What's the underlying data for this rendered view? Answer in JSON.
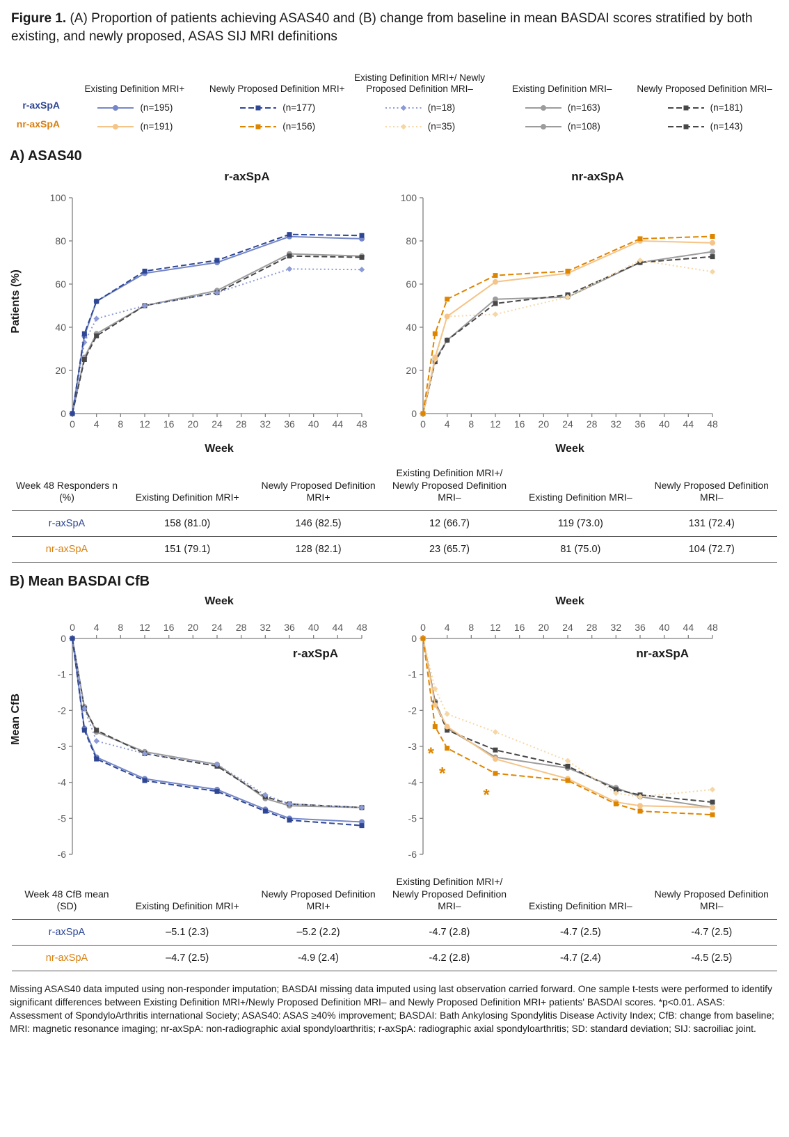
{
  "title": {
    "bold": "Figure 1.",
    "rest": " (A) Proportion of patients achieving ASAS40 and (B) change from baseline in mean BASDAI scores stratified by both existing, and newly proposed, ASAS SIJ MRI definitions"
  },
  "accent_colors": {
    "r_axspa": "#2e4693",
    "nr_axspa": "#d97f0e",
    "axis": "#808080",
    "tick_text": "#595959"
  },
  "styles": {
    "r_existing_plus": {
      "color": "#7587c8",
      "dash": "",
      "marker": "circle"
    },
    "r_new_plus": {
      "color": "#2e4693",
      "dash": "8 4",
      "marker": "square"
    },
    "r_mixed": {
      "color": "#8c9ad6",
      "dash": "2 3.5",
      "marker": "diamond"
    },
    "gray_existing_minus": {
      "color": "#9c9c9c",
      "dash": "",
      "marker": "circle"
    },
    "dark_new_minus": {
      "color": "#474747",
      "dash": "8 4",
      "marker": "square"
    },
    "nr_existing_plus": {
      "color": "#f5c488",
      "dash": "",
      "marker": "circle"
    },
    "nr_new_plus": {
      "color": "#de8500",
      "dash": "8 4",
      "marker": "square"
    },
    "nr_mixed": {
      "color": "#f6d7a4",
      "dash": "2 3.5",
      "marker": "diamond"
    }
  },
  "legend": {
    "row_labels": {
      "r": "r-axSpA",
      "nr": "nr-axSpA"
    },
    "groups": [
      {
        "header": "Existing Definition MRI+",
        "r": {
          "style": "r_existing_plus",
          "n": "(n=195)"
        },
        "nr": {
          "style": "nr_existing_plus",
          "n": "(n=191)"
        }
      },
      {
        "header": "Newly Proposed Definition MRI+",
        "r": {
          "style": "r_new_plus",
          "n": "(n=177)"
        },
        "nr": {
          "style": "nr_new_plus",
          "n": "(n=156)"
        }
      },
      {
        "header": "Existing Definition MRI+/ Newly Proposed Definition MRI–",
        "r": {
          "style": "r_mixed",
          "n": "(n=18)"
        },
        "nr": {
          "style": "nr_mixed",
          "n": "(n=35)"
        }
      },
      {
        "header": "Existing Definition MRI–",
        "r": {
          "style": "gray_existing_minus",
          "n": "(n=163)"
        },
        "nr": {
          "style": "gray_existing_minus",
          "n": "(n=108)"
        }
      },
      {
        "header": "Newly Proposed Definition MRI–",
        "r": {
          "style": "dark_new_minus",
          "n": "(n=181)"
        },
        "nr": {
          "style": "dark_new_minus",
          "n": "(n=143)"
        }
      }
    ]
  },
  "panel_a_heading": "A) ASAS40",
  "panel_b_heading": "B) Mean BASDAI CfB",
  "chart_data": [
    {
      "type": "line",
      "title": "r-axSpA",
      "xlabel": "Week",
      "ylabel": "Patients (%)",
      "xlim": [
        0,
        48
      ],
      "xticks": [
        0,
        4,
        8,
        12,
        16,
        20,
        24,
        28,
        32,
        36,
        40,
        44,
        48
      ],
      "ylim": [
        0,
        100
      ],
      "yticks": [
        0,
        20,
        40,
        60,
        80,
        100
      ],
      "x_axis": "bottom",
      "x": [
        0,
        2,
        4,
        12,
        24,
        36,
        48
      ],
      "series": [
        {
          "name": "Existing Definition MRI–",
          "style": "gray_existing_minus",
          "values": [
            0,
            26,
            37,
            50,
            57,
            74,
            73
          ]
        },
        {
          "name": "Newly Proposed Definition MRI–",
          "style": "dark_new_minus",
          "values": [
            0,
            25,
            36,
            50,
            56,
            73,
            72.4
          ]
        },
        {
          "name": "Existing Definition MRI+/Newly Proposed Definition MRI–",
          "style": "r_mixed",
          "values": [
            0,
            33,
            44,
            50,
            56,
            67,
            66.7
          ]
        },
        {
          "name": "Existing Definition MRI+",
          "style": "r_existing_plus",
          "values": [
            0,
            36,
            52,
            65,
            70,
            82,
            81
          ]
        },
        {
          "name": "Newly Proposed Definition MRI+",
          "style": "r_new_plus",
          "values": [
            0,
            37,
            52,
            66,
            71,
            83,
            82.5
          ]
        }
      ]
    },
    {
      "type": "line",
      "title": "nr-axSpA",
      "xlabel": "Week",
      "ylabel": "",
      "xlim": [
        0,
        48
      ],
      "xticks": [
        0,
        4,
        8,
        12,
        16,
        20,
        24,
        28,
        32,
        36,
        40,
        44,
        48
      ],
      "ylim": [
        0,
        100
      ],
      "yticks": [
        0,
        20,
        40,
        60,
        80,
        100
      ],
      "x_axis": "bottom",
      "x": [
        0,
        2,
        4,
        12,
        24,
        36,
        48
      ],
      "series": [
        {
          "name": "Existing Definition MRI–",
          "style": "gray_existing_minus",
          "values": [
            0,
            25,
            34,
            53,
            54,
            70,
            75
          ]
        },
        {
          "name": "Newly Proposed Definition MRI–",
          "style": "dark_new_minus",
          "values": [
            0,
            24,
            34,
            51,
            55,
            70,
            72.7
          ]
        },
        {
          "name": "Existing Definition MRI+/Newly Proposed Definition MRI–",
          "style": "nr_mixed",
          "values": [
            0,
            25,
            45,
            46,
            54,
            71,
            65.7
          ]
        },
        {
          "name": "Existing Definition MRI+",
          "style": "nr_existing_plus",
          "values": [
            0,
            26,
            45,
            61,
            65,
            80,
            79.1
          ]
        },
        {
          "name": "Newly Proposed Definition MRI+",
          "style": "nr_new_plus",
          "values": [
            0,
            37,
            53,
            64,
            66,
            81,
            82.1
          ]
        }
      ]
    },
    {
      "type": "line",
      "title": "r-axSpA",
      "xlabel": "Week",
      "ylabel": "Mean CfB",
      "xlim": [
        0,
        48
      ],
      "xticks": [
        0,
        4,
        8,
        12,
        16,
        20,
        24,
        28,
        32,
        36,
        40,
        44,
        48
      ],
      "ylim": [
        -6,
        0
      ],
      "yticks": [
        0,
        -1,
        -2,
        -3,
        -4,
        -5,
        -6
      ],
      "x_axis": "top",
      "x": [
        0,
        2,
        4,
        12,
        24,
        32,
        36,
        48
      ],
      "series": [
        {
          "name": "Existing Definition MRI–",
          "style": "gray_existing_minus",
          "values": [
            0,
            -1.9,
            -2.6,
            -3.15,
            -3.5,
            -4.45,
            -4.65,
            -4.7
          ]
        },
        {
          "name": "Newly Proposed Definition MRI–",
          "style": "dark_new_minus",
          "values": [
            0,
            -1.95,
            -2.55,
            -3.2,
            -3.55,
            -4.4,
            -4.6,
            -4.7
          ]
        },
        {
          "name": "Existing Definition MRI+/Newly Proposed Definition MRI–",
          "style": "r_mixed",
          "values": [
            0,
            -1.95,
            -2.85,
            -3.2,
            -3.5,
            -4.35,
            -4.6,
            -4.7
          ]
        },
        {
          "name": "Existing Definition MRI+",
          "style": "r_existing_plus",
          "values": [
            0,
            -2.5,
            -3.3,
            -3.9,
            -4.2,
            -4.75,
            -5.0,
            -5.1
          ]
        },
        {
          "name": "Newly Proposed Definition MRI+",
          "style": "r_new_plus",
          "values": [
            0,
            -2.55,
            -3.35,
            -3.95,
            -4.25,
            -4.8,
            -5.05,
            -5.2
          ]
        }
      ]
    },
    {
      "type": "line",
      "title": "nr-axSpA",
      "xlabel": "Week",
      "ylabel": "",
      "xlim": [
        0,
        48
      ],
      "xticks": [
        0,
        4,
        8,
        12,
        16,
        20,
        24,
        28,
        32,
        36,
        40,
        44,
        48
      ],
      "ylim": [
        -6,
        0
      ],
      "yticks": [
        0,
        -1,
        -2,
        -3,
        -4,
        -5,
        -6
      ],
      "x_axis": "top",
      "x": [
        0,
        2,
        4,
        12,
        24,
        32,
        36,
        48
      ],
      "series": [
        {
          "name": "Existing Definition MRI–",
          "style": "gray_existing_minus",
          "values": [
            0,
            -1.75,
            -2.5,
            -3.3,
            -3.6,
            -4.15,
            -4.4,
            -4.7
          ]
        },
        {
          "name": "Newly Proposed Definition MRI–",
          "style": "dark_new_minus",
          "values": [
            0,
            -1.8,
            -2.55,
            -3.1,
            -3.55,
            -4.2,
            -4.35,
            -4.55
          ]
        },
        {
          "name": "Existing Definition MRI+/Newly Proposed Definition MRI–",
          "style": "nr_mixed",
          "values": [
            0,
            -1.4,
            -2.1,
            -2.6,
            -3.4,
            -4.3,
            -4.4,
            -4.2
          ]
        },
        {
          "name": "Existing Definition MRI+",
          "style": "nr_existing_plus",
          "values": [
            0,
            -1.85,
            -2.45,
            -3.35,
            -3.9,
            -4.55,
            -4.65,
            -4.7
          ]
        },
        {
          "name": "Newly Proposed Definition MRI+",
          "style": "nr_new_plus",
          "values": [
            0,
            -2.45,
            -3.05,
            -3.75,
            -3.95,
            -4.6,
            -4.8,
            -4.9
          ]
        }
      ],
      "annotations": [
        {
          "x": 1.3,
          "y": -3.35,
          "text": "*",
          "color": "#de8500"
        },
        {
          "x": 3.2,
          "y": -3.9,
          "text": "*",
          "color": "#de8500"
        },
        {
          "x": 10.5,
          "y": -4.5,
          "text": "*",
          "color": "#de8500"
        }
      ]
    }
  ],
  "tables": {
    "asas40": {
      "corner": "Week 48 Responders n (%)",
      "headers": [
        "Existing Definition MRI+",
        "Newly Proposed Definition MRI+",
        "Existing Definition MRI+/ Newly Proposed Definition MRI–",
        "Existing Definition MRI–",
        "Newly Proposed Definition MRI–"
      ],
      "rows": [
        {
          "label": "r-axSpA",
          "values": [
            "158 (81.0)",
            "146 (82.5)",
            "12 (66.7)",
            "119 (73.0)",
            "131 (72.4)"
          ]
        },
        {
          "label": "nr-axSpA",
          "values": [
            "151 (79.1)",
            "128 (82.1)",
            "23 (65.7)",
            "81 (75.0)",
            "104 (72.7)"
          ]
        }
      ]
    },
    "basdai": {
      "corner": "Week 48 CfB mean (SD)",
      "headers": [
        "Existing Definition MRI+",
        "Newly Proposed Definition MRI+",
        "Existing Definition MRI+/ Newly Proposed Definition MRI–",
        "Existing Definition MRI–",
        "Newly Proposed Definition MRI–"
      ],
      "rows": [
        {
          "label": "r-axSpA",
          "values": [
            "–5.1 (2.3)",
            "–5.2 (2.2)",
            "-4.7 (2.8)",
            "-4.7 (2.5)",
            "-4.7 (2.5)"
          ]
        },
        {
          "label": "nr-axSpA",
          "values": [
            "–4.7 (2.5)",
            "-4.9 (2.4)",
            "-4.2 (2.8)",
            "-4.7 (2.4)",
            "-4.5 (2.5)"
          ]
        }
      ]
    }
  },
  "footnote": "Missing ASAS40 data imputed using non-responder imputation; BASDAI missing data imputed using last observation carried forward. One sample t-tests were performed to identify significant differences between Existing Definition MRI+/Newly Proposed Definition MRI– and Newly Proposed Definition MRI+ patients' BASDAI scores. *p<0.01. ASAS: Assessment of SpondyloArthritis international Society; ASAS40: ASAS ≥40% improvement; BASDAI: Bath Ankylosing Spondylitis Disease Activity Index; CfB: change from baseline; MRI: magnetic resonance imaging; nr-axSpA: non-radiographic axial spondyloarthritis; r-axSpA: radiographic axial spondyloarthritis; SD: standard deviation; SIJ: sacroiliac joint."
}
